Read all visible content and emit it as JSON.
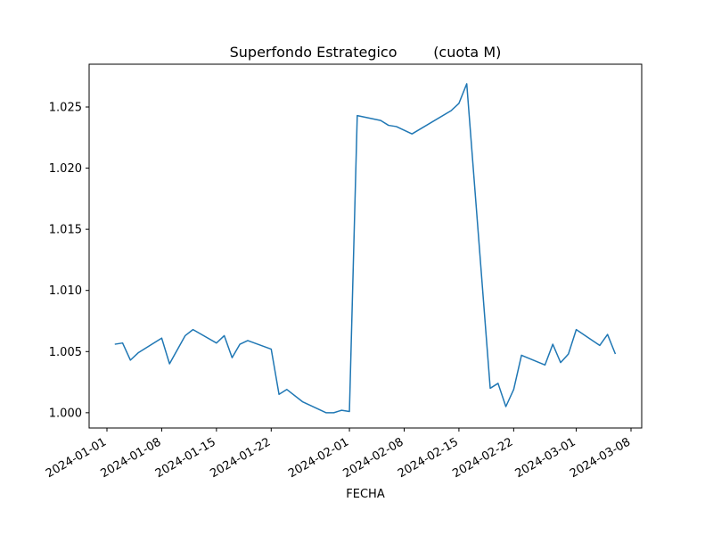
{
  "chart_data": {
    "type": "line",
    "title": "Superfondo Estrategico        (cuota M)",
    "xlabel": "FECHA",
    "ylabel": "",
    "x_axis_type": "date",
    "xlim": [
      "2024-01-01",
      "2024-03-08"
    ],
    "ylim": [
      0.99875,
      1.0285
    ],
    "x_ticks": [
      "2024-01-01",
      "2024-01-08",
      "2024-01-15",
      "2024-01-22",
      "2024-02-01",
      "2024-02-08",
      "2024-02-15",
      "2024-02-22",
      "2024-03-01",
      "2024-03-08"
    ],
    "y_ticks": [
      1.0,
      1.005,
      1.01,
      1.015,
      1.02,
      1.025
    ],
    "y_tick_labels": [
      "1.000",
      "1.005",
      "1.010",
      "1.015",
      "1.020",
      "1.025"
    ],
    "grid": false,
    "series": [
      {
        "color": "#1f77b4",
        "x": [
          "2024-01-02",
          "2024-01-03",
          "2024-01-04",
          "2024-01-05",
          "2024-01-08",
          "2024-01-09",
          "2024-01-11",
          "2024-01-12",
          "2024-01-15",
          "2024-01-16",
          "2024-01-17",
          "2024-01-18",
          "2024-01-19",
          "2024-01-22",
          "2024-01-23",
          "2024-01-24",
          "2024-01-26",
          "2024-01-29",
          "2024-01-30",
          "2024-01-31",
          "2024-02-01",
          "2024-02-02",
          "2024-02-05",
          "2024-02-06",
          "2024-02-07",
          "2024-02-09",
          "2024-02-14",
          "2024-02-15",
          "2024-02-16",
          "2024-02-19",
          "2024-02-20",
          "2024-02-21",
          "2024-02-22",
          "2024-02-23",
          "2024-02-26",
          "2024-02-27",
          "2024-02-28",
          "2024-02-29",
          "2024-03-01",
          "2024-03-04",
          "2024-03-05",
          "2024-03-06"
        ],
        "values": [
          1.0056,
          1.0057,
          1.0043,
          1.0049,
          1.0061,
          1.004,
          1.0063,
          1.0068,
          1.0057,
          1.0063,
          1.0045,
          1.0056,
          1.0059,
          1.0052,
          1.0015,
          1.0019,
          1.0009,
          1.0,
          1.0,
          1.0002,
          1.0001,
          1.0243,
          1.0239,
          1.0235,
          1.0234,
          1.0228,
          1.0247,
          1.0253,
          1.0269,
          1.002,
          1.0024,
          1.0005,
          1.0019,
          1.0047,
          1.0039,
          1.0056,
          1.0041,
          1.0048,
          1.0068,
          1.0055,
          1.0064,
          1.0048
        ]
      }
    ]
  }
}
